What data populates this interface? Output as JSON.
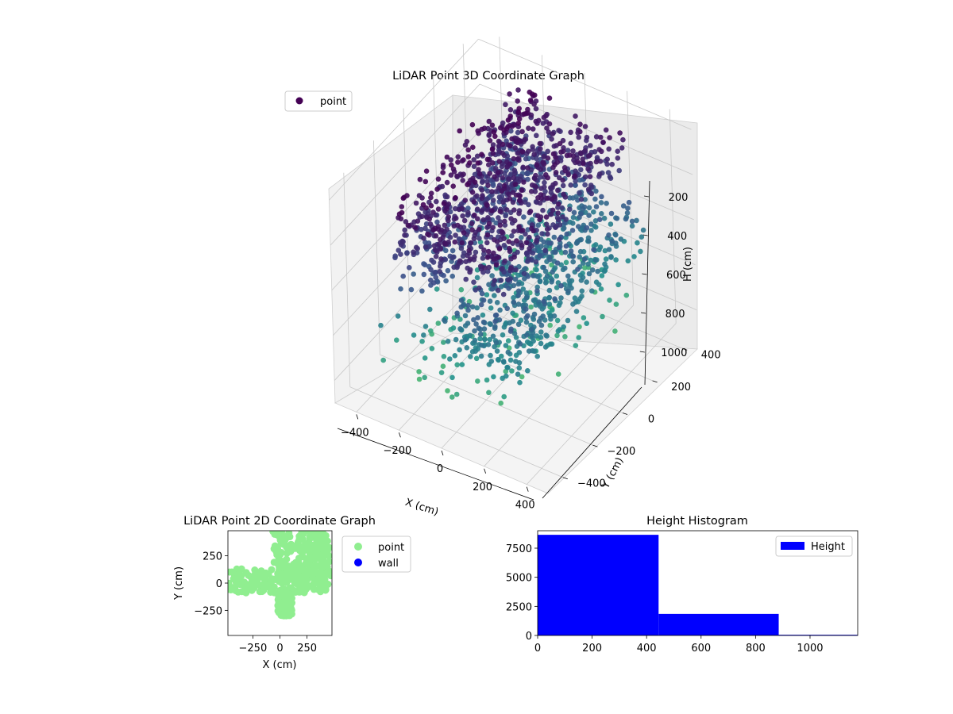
{
  "colors": {
    "point_2d": "#90ee90",
    "wall_2d": "#0000ff",
    "histogram": "#0000ff",
    "colormap": "viridis"
  },
  "chart_data": [
    {
      "id": "lidar-3d",
      "type": "scatter",
      "projection": "3d",
      "title": "LiDAR Point 3D Coordinate Graph",
      "xlabel": "X (cm)",
      "ylabel": "Y (cm)",
      "zlabel": "H (cm)",
      "x_ticks": [
        "−400",
        "−200",
        "0",
        "200",
        "400"
      ],
      "y_ticks": [
        "−400",
        "−200",
        "0",
        "200",
        "400"
      ],
      "z_ticks": [
        "200",
        "400",
        "600",
        "800",
        "1000"
      ],
      "xlim": [
        -500,
        500
      ],
      "ylim": [
        -500,
        500
      ],
      "zlim": [
        1100,
        150
      ],
      "z_axis_inverted": true,
      "grid": true,
      "legend": {
        "location": "upper-left",
        "entries": [
          "point"
        ]
      },
      "series": [
        {
          "name": "point",
          "color_by": "height",
          "clusters": [
            {
              "x_range": [
                -280,
                -80
              ],
              "y_range": [
                -420,
                430
              ],
              "z_range": [
                200,
                560
              ]
            },
            {
              "x_range": [
                -100,
                250
              ],
              "y_range": [
                -420,
                430
              ],
              "z_range": [
                250,
                420
              ]
            },
            {
              "x_range": [
                -40,
                320
              ],
              "y_range": [
                -420,
                430
              ],
              "z_range": [
                520,
                760
              ]
            },
            {
              "x_range": [
                -320,
                320
              ],
              "y_range": [
                -460,
                460
              ],
              "z_range": [
                700,
                1000
              ]
            }
          ],
          "n_points_approx": 10500
        }
      ]
    },
    {
      "id": "lidar-2d",
      "type": "scatter",
      "title": "LiDAR Point 2D Coordinate Graph",
      "xlabel": "X (cm)",
      "ylabel": "Y (cm)",
      "x_ticks": [
        "−250",
        "0",
        "250"
      ],
      "y_ticks": [
        "250",
        "0",
        "−250"
      ],
      "xlim": [
        -480,
        480
      ],
      "ylim": [
        -480,
        480
      ],
      "legend": {
        "location": "outside-right",
        "entries": [
          "point",
          "wall"
        ]
      },
      "series": [
        {
          "name": "point",
          "color": "#90ee90",
          "regions": [
            {
              "x": [
                -80,
                460
              ],
              "y": [
                50,
                480
              ]
            },
            {
              "x": [
                -480,
                480
              ],
              "y": [
                -90,
                130
              ]
            },
            {
              "x": [
                -20,
                110
              ],
              "y": [
                -300,
                -90
              ]
            }
          ]
        },
        {
          "name": "wall",
          "color": "#0000ff",
          "regions": []
        }
      ]
    },
    {
      "id": "height-histogram",
      "type": "bar",
      "title": "Height Histogram",
      "xlabel": "",
      "ylabel": "",
      "x_ticks": [
        "0",
        "200",
        "400",
        "600",
        "800",
        "1000"
      ],
      "y_ticks": [
        "0",
        "2500",
        "5000",
        "7500"
      ],
      "xlim": [
        0,
        1175
      ],
      "ylim": [
        0,
        9000
      ],
      "legend": {
        "location": "top-right",
        "entries": [
          "Height"
        ]
      },
      "bins": [
        {
          "start": 0,
          "end": 444,
          "count": 8650
        },
        {
          "start": 444,
          "end": 885,
          "count": 1850
        },
        {
          "start": 885,
          "end": 1175,
          "count": 60
        }
      ]
    }
  ]
}
